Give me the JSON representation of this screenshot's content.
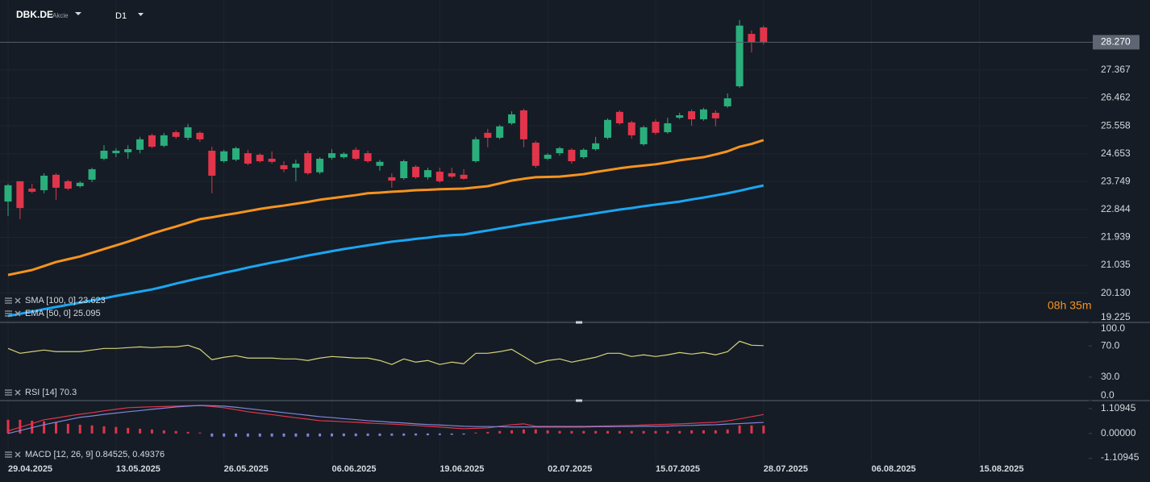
{
  "header": {
    "symbol": "DBK.DE",
    "type": "Akcie",
    "timeframe": "D1"
  },
  "countdown": "08h 35m",
  "chart_data": [
    {
      "type": "candlestick",
      "categories": [
        "29.04.2025",
        null,
        null,
        null,
        null,
        null,
        null,
        null,
        null,
        "13.05.2025",
        null,
        null,
        null,
        null,
        null,
        null,
        null,
        null,
        "26.05.2025",
        null,
        null,
        null,
        null,
        null,
        null,
        null,
        null,
        "06.06.2025",
        null,
        null,
        null,
        null,
        null,
        null,
        null,
        null,
        "19.06.2025",
        null,
        null,
        null,
        null,
        null,
        null,
        null,
        null,
        "02.07.2025",
        null,
        null,
        null,
        null,
        null,
        null,
        null,
        null,
        "15.07.2025",
        null,
        null,
        null,
        null,
        null,
        null,
        null,
        null,
        "28.07.2025",
        null,
        null,
        null,
        null,
        null,
        null,
        null,
        null,
        "06.08.2025",
        null,
        null,
        null,
        null,
        null,
        null,
        null,
        null,
        "15.08.2025",
        null,
        null,
        null,
        null,
        null,
        null,
        null,
        null
      ],
      "open": [
        23.1,
        23.76,
        23.52,
        23.47,
        23.97,
        23.76,
        23.6,
        23.81,
        24.49,
        24.67,
        24.7,
        24.78,
        25.25,
        24.91,
        25.35,
        25.17,
        25.33,
        24.75,
        24.41,
        24.46,
        24.67,
        24.62,
        24.49,
        24.28,
        24.2,
        24.67,
        24.05,
        24.52,
        24.54,
        24.78,
        24.67,
        24.26,
        23.89,
        23.86,
        24.23,
        23.89,
        24.07,
        24.02,
        23.97,
        24.41,
        25.33,
        25.17,
        25.64,
        26.06,
        25.01,
        24.49,
        24.67,
        24.78,
        24.54,
        24.8,
        25.17,
        26.01,
        25.67,
        24.96,
        25.69,
        25.35,
        25.82,
        26.03,
        25.77,
        25.98,
        26.19,
        26.84,
        28.54,
        28.75,
        null,
        null,
        null,
        null,
        null,
        null,
        null,
        null,
        null,
        null,
        null,
        null,
        null,
        null,
        null,
        null,
        null,
        null,
        null,
        null,
        null,
        null,
        null,
        null,
        null,
        null
      ],
      "high": [
        23.68,
        23.76,
        23.68,
        24.02,
        24.02,
        23.81,
        23.76,
        24.2,
        24.93,
        24.83,
        24.93,
        25.2,
        25.3,
        25.33,
        25.41,
        25.62,
        25.38,
        24.88,
        24.78,
        24.88,
        24.78,
        24.67,
        24.73,
        24.41,
        24.46,
        24.75,
        24.54,
        24.8,
        24.7,
        24.86,
        24.75,
        24.46,
        24.02,
        24.46,
        24.28,
        24.2,
        24.2,
        24.2,
        24.15,
        25.2,
        25.46,
        25.59,
        26.03,
        26.11,
        25.07,
        24.67,
        24.88,
        24.83,
        24.83,
        25.2,
        25.8,
        26.06,
        25.72,
        25.56,
        25.77,
        25.82,
        25.98,
        26.09,
        26.14,
        26.06,
        26.61,
        28.99,
        28.65,
        28.81,
        null,
        null,
        null,
        null,
        null,
        null,
        null,
        null,
        null,
        null,
        null,
        null,
        null,
        null,
        null,
        null,
        null,
        null,
        null,
        null,
        null,
        null,
        null,
        null,
        null,
        null
      ],
      "low": [
        22.63,
        22.53,
        23.37,
        23.37,
        23.16,
        23.47,
        23.55,
        23.73,
        24.44,
        24.54,
        24.49,
        24.67,
        24.83,
        24.86,
        25.14,
        25.09,
        25.04,
        23.37,
        24.36,
        24.41,
        24.28,
        24.36,
        24.33,
        24.05,
        23.76,
        23.97,
        23.99,
        24.46,
        24.49,
        24.44,
        24.36,
        24.1,
        23.55,
        23.81,
        23.84,
        23.81,
        23.71,
        23.86,
        23.81,
        24.36,
        24.86,
        25.12,
        25.59,
        24.86,
        24.2,
        24.44,
        24.59,
        24.33,
        24.49,
        24.75,
        25.12,
        25.59,
        25.14,
        24.91,
        25.27,
        25.3,
        25.77,
        25.56,
        25.72,
        25.54,
        26.14,
        26.79,
        27.94,
        28.2,
        null,
        null,
        null,
        null,
        null,
        null,
        null,
        null,
        null,
        null,
        null,
        null,
        null,
        null,
        null,
        null,
        null,
        null,
        null,
        null,
        null,
        null,
        null,
        null,
        null,
        null
      ],
      "close": [
        23.63,
        22.89,
        23.42,
        23.94,
        23.55,
        23.52,
        23.71,
        24.15,
        24.75,
        24.75,
        24.8,
        25.12,
        24.88,
        25.25,
        25.2,
        25.51,
        25.12,
        23.94,
        24.73,
        24.83,
        24.33,
        24.41,
        24.39,
        24.15,
        24.33,
        24.02,
        24.49,
        24.67,
        24.65,
        24.49,
        24.41,
        24.39,
        23.78,
        24.41,
        23.89,
        24.12,
        23.76,
        23.91,
        23.84,
        25.12,
        25.17,
        25.54,
        25.93,
        25.12,
        24.26,
        24.62,
        24.83,
        24.41,
        24.78,
        24.99,
        25.75,
        25.64,
        25.25,
        25.51,
        25.33,
        25.64,
        25.9,
        25.77,
        26.09,
        25.8,
        26.45,
        28.81,
        28.28,
        28.27,
        null,
        null,
        null,
        null,
        null,
        null,
        null,
        null,
        null,
        null,
        null,
        null,
        null,
        null,
        null,
        null,
        null,
        null,
        null,
        null,
        null,
        null,
        null,
        null,
        null,
        null
      ],
      "up_color": "#2aae7c",
      "down_color": "#e2354b",
      "series": [
        {
          "name": "SMA [100, 0] 23.623",
          "color": "#1ba6f2",
          "values": [
            19.39,
            19.46,
            19.53,
            19.61,
            19.68,
            19.75,
            19.82,
            19.89,
            19.96,
            20.04,
            20.11,
            20.18,
            20.25,
            20.34,
            20.44,
            20.53,
            20.62,
            20.7,
            20.79,
            20.87,
            20.96,
            21.04,
            21.12,
            21.19,
            21.27,
            21.35,
            21.42,
            21.49,
            21.56,
            21.62,
            21.68,
            21.74,
            21.8,
            21.84,
            21.89,
            21.93,
            21.98,
            22.01,
            22.03,
            22.1,
            22.16,
            22.23,
            22.29,
            22.36,
            22.42,
            22.48,
            22.54,
            22.6,
            22.66,
            22.72,
            22.78,
            22.84,
            22.89,
            22.95,
            23.0,
            23.05,
            23.1,
            23.17,
            23.23,
            23.3,
            23.37,
            23.45,
            23.54,
            23.623,
            null,
            null,
            null,
            null,
            null,
            null,
            null,
            null,
            null,
            null,
            null,
            null,
            null,
            null,
            null,
            null,
            null,
            null,
            null,
            null,
            null,
            null,
            null,
            null,
            null,
            null
          ]
        },
        {
          "name": "EMA [50, 0] 25.095",
          "color": "#f7931e",
          "values": [
            20.72,
            20.8,
            20.88,
            21.01,
            21.14,
            21.23,
            21.32,
            21.44,
            21.56,
            21.68,
            21.8,
            21.93,
            22.06,
            22.18,
            22.29,
            22.41,
            22.53,
            22.59,
            22.66,
            22.72,
            22.79,
            22.86,
            22.92,
            22.97,
            23.03,
            23.09,
            23.16,
            23.21,
            23.26,
            23.31,
            23.37,
            23.39,
            23.42,
            23.44,
            23.47,
            23.48,
            23.5,
            23.51,
            23.52,
            23.56,
            23.6,
            23.69,
            23.78,
            23.84,
            23.89,
            23.9,
            23.91,
            23.95,
            23.99,
            24.06,
            24.12,
            24.18,
            24.23,
            24.27,
            24.31,
            24.37,
            24.44,
            24.49,
            24.54,
            24.63,
            24.73,
            24.88,
            24.97,
            25.095,
            null,
            null,
            null,
            null,
            null,
            null,
            null,
            null,
            null,
            null,
            null,
            null,
            null,
            null,
            null,
            null,
            null,
            null,
            null,
            null,
            null,
            null,
            null,
            null,
            null,
            null
          ]
        }
      ],
      "ylim": [
        19.18,
        29.64
      ],
      "yticks": [
        27.367,
        26.462,
        25.558,
        24.653,
        23.749,
        22.844,
        21.939,
        21.035,
        {
          "value": 20.13,
          "label": "20.130"
        },
        19.225
      ],
      "last_price": {
        "value": 28.27,
        "label": "28.270"
      },
      "grid": true
    },
    {
      "type": "line",
      "title": "RSI [14] 70.3",
      "series": [
        {
          "color": "#d6d27a",
          "values": [
            66.7,
            60.5,
            62.6,
            64.6,
            62.6,
            62.6,
            62.6,
            64.6,
            66.7,
            66.7,
            67.7,
            68.7,
            67.7,
            68.7,
            68.7,
            70.8,
            65.6,
            52.3,
            55.4,
            57.4,
            54.4,
            54.4,
            54.4,
            53.3,
            53.3,
            51.3,
            54.4,
            56.4,
            55.4,
            54.4,
            54.4,
            51.3,
            46.2,
            53.3,
            49.2,
            51.3,
            46.2,
            49.2,
            47.2,
            60.5,
            60.5,
            62.6,
            65.6,
            56.4,
            47.2,
            51.3,
            53.3,
            49.2,
            52.3,
            55.4,
            60.5,
            60.5,
            56.4,
            58.5,
            56.4,
            58.5,
            61.5,
            59.5,
            61.5,
            58.5,
            62.6,
            75.9,
            70.8,
            70.3,
            null,
            null,
            null,
            null,
            null,
            null,
            null,
            null,
            null,
            null,
            null,
            null,
            null,
            null,
            null,
            null,
            null,
            null,
            null,
            null,
            null,
            null,
            null,
            null,
            null,
            null
          ]
        }
      ],
      "ylim": [
        0,
        100
      ],
      "yticks": [
        {
          "value": 100,
          "label": "100.0"
        },
        {
          "value": 70,
          "label": "70.0"
        },
        {
          "value": 30,
          "label": "30.0"
        },
        {
          "value": 0,
          "label": "0.0"
        }
      ],
      "grid": false
    },
    {
      "type": "line",
      "title": "MACD [12, 26, 9] 0.84525, 0.49376",
      "series": [
        {
          "type": "bar",
          "color": "#e2354b",
          "negative_color": "#7f86d8",
          "values": [
            0.61,
            0.61,
            0.57,
            0.54,
            0.5,
            0.43,
            0.39,
            0.36,
            0.32,
            0.29,
            0.25,
            0.21,
            0.18,
            0.14,
            0.11,
            0.07,
            0.04,
            -0.14,
            -0.14,
            -0.14,
            -0.14,
            -0.14,
            -0.14,
            -0.14,
            -0.14,
            -0.14,
            -0.13,
            -0.13,
            -0.12,
            -0.12,
            -0.11,
            -0.11,
            -0.1,
            -0.1,
            -0.09,
            -0.08,
            -0.07,
            -0.06,
            -0.05,
            0.04,
            0.07,
            0.11,
            0.14,
            0.18,
            0.18,
            0.14,
            0.11,
            0.11,
            0.11,
            0.11,
            0.11,
            0.11,
            0.11,
            0.11,
            0.11,
            0.11,
            0.11,
            0.14,
            0.14,
            0.14,
            0.18,
            0.36,
            0.36,
            0.35,
            null,
            null,
            null,
            null,
            null,
            null,
            null,
            null,
            null,
            null,
            null,
            null,
            null,
            null,
            null,
            null,
            null,
            null,
            null,
            null,
            null,
            null,
            null,
            null,
            null,
            null
          ]
        },
        {
          "color": "#e2354b",
          "values": [
            0.11,
            0.28,
            0.44,
            0.61,
            0.69,
            0.78,
            0.86,
            0.93,
            1.01,
            1.08,
            1.15,
            1.17,
            1.19,
            1.2,
            1.22,
            1.24,
            1.25,
            1.2,
            1.15,
            1.06,
            0.97,
            0.9,
            0.84,
            0.77,
            0.7,
            0.64,
            0.57,
            0.55,
            0.52,
            0.5,
            0.47,
            0.44,
            0.42,
            0.39,
            0.36,
            0.32,
            0.29,
            0.25,
            0.21,
            0.23,
            0.25,
            0.32,
            0.39,
            0.43,
            0.32,
            0.32,
            0.32,
            0.32,
            0.32,
            0.33,
            0.34,
            0.35,
            0.36,
            0.38,
            0.4,
            0.41,
            0.43,
            0.45,
            0.48,
            0.5,
            0.56,
            0.65,
            0.75,
            0.84525,
            null,
            null,
            null,
            null,
            null,
            null,
            null,
            null,
            null,
            null,
            null,
            null,
            null,
            null,
            null,
            null,
            null,
            null,
            null,
            null,
            null,
            null,
            null,
            null,
            null,
            null
          ]
        },
        {
          "color": "#7f86d8",
          "values": [
            0.0,
            0.13,
            0.26,
            0.39,
            0.5,
            0.61,
            0.72,
            0.78,
            0.85,
            0.91,
            0.97,
            1.02,
            1.08,
            1.13,
            1.18,
            1.22,
            1.25,
            1.24,
            1.22,
            1.17,
            1.11,
            1.05,
            0.99,
            0.93,
            0.87,
            0.81,
            0.75,
            0.71,
            0.66,
            0.62,
            0.57,
            0.54,
            0.5,
            0.47,
            0.43,
            0.4,
            0.38,
            0.35,
            0.32,
            0.31,
            0.31,
            0.3,
            0.29,
            0.29,
            0.29,
            0.29,
            0.29,
            0.29,
            0.29,
            0.3,
            0.3,
            0.31,
            0.31,
            0.32,
            0.32,
            0.33,
            0.35,
            0.36,
            0.38,
            0.39,
            0.42,
            0.44,
            0.47,
            0.49376,
            null,
            null,
            null,
            null,
            null,
            null,
            null,
            null,
            null,
            null,
            null,
            null,
            null,
            null,
            null,
            null,
            null,
            null,
            null,
            null,
            null,
            null,
            null,
            null,
            null,
            null
          ]
        }
      ],
      "ylim": [
        -1.3,
        1.43
      ],
      "yticks": [
        1.10945,
        {
          "value": 0,
          "label": "0.00000"
        },
        -1.10945
      ],
      "grid": false
    }
  ]
}
